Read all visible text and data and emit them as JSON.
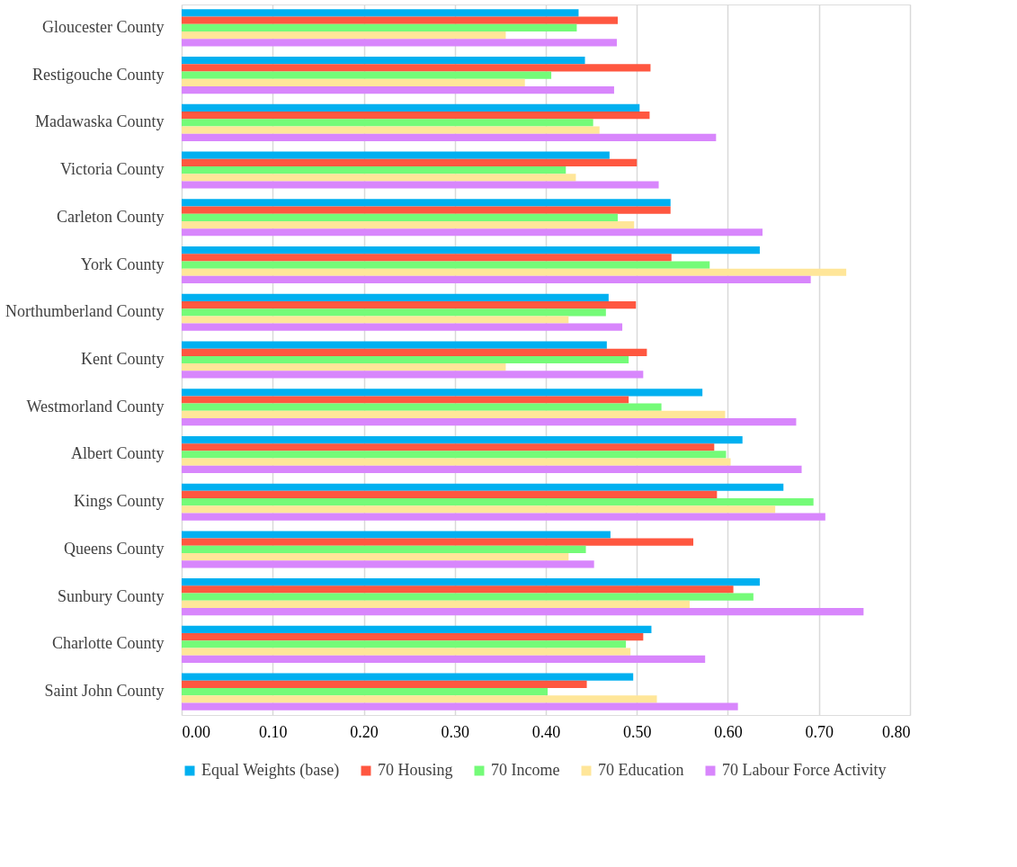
{
  "chart_data": {
    "type": "bar",
    "orientation": "horizontal",
    "categories": [
      "Gloucester County",
      "Restigouche County",
      "Madawaska County",
      "Victoria County",
      "Carleton County",
      "York County",
      "Northumberland County",
      "Kent County",
      "Westmorland County",
      "Albert County",
      "Kings County",
      "Queens County",
      "Sunbury County",
      "Charlotte County",
      "Saint John County"
    ],
    "series": [
      {
        "name": "Equal Weights (base)",
        "color": "#00b0f0",
        "values": [
          0.436,
          0.443,
          0.503,
          0.47,
          0.537,
          0.635,
          0.469,
          0.467,
          0.572,
          0.616,
          0.661,
          0.471,
          0.635,
          0.516,
          0.496
        ]
      },
      {
        "name": "70 Housing",
        "color": "#ff5740",
        "values": [
          0.479,
          0.515,
          0.514,
          0.5,
          0.537,
          0.538,
          0.499,
          0.511,
          0.491,
          0.585,
          0.588,
          0.562,
          0.606,
          0.507,
          0.445
        ]
      },
      {
        "name": "70 Income",
        "color": "#74fb78",
        "values": [
          0.434,
          0.406,
          0.452,
          0.422,
          0.479,
          0.58,
          0.466,
          0.491,
          0.527,
          0.598,
          0.694,
          0.444,
          0.628,
          0.488,
          0.402
        ]
      },
      {
        "name": "70 Education",
        "color": "#ffe699",
        "values": [
          0.356,
          0.377,
          0.459,
          0.433,
          0.497,
          0.73,
          0.425,
          0.356,
          0.597,
          0.603,
          0.652,
          0.425,
          0.558,
          0.493,
          0.522
        ]
      },
      {
        "name": "70 Labour Force Activity",
        "color": "#d886fc",
        "values": [
          0.478,
          0.475,
          0.587,
          0.524,
          0.638,
          0.691,
          0.484,
          0.507,
          0.675,
          0.681,
          0.707,
          0.453,
          0.749,
          0.575,
          0.611
        ]
      }
    ],
    "xlim": [
      0,
      0.8
    ],
    "xticks": [
      {
        "value": 0,
        "label": "0.00"
      },
      {
        "value": 0.1,
        "label": "0.10"
      },
      {
        "value": 0.2,
        "label": "0.20"
      },
      {
        "value": 0.3,
        "label": "0.30"
      },
      {
        "value": 0.4,
        "label": "0.40"
      },
      {
        "value": 0.5,
        "label": "0.50"
      },
      {
        "value": 0.6,
        "label": "0.60"
      },
      {
        "value": 0.7,
        "label": "0.70"
      },
      {
        "value": 0.8,
        "label": "0.80"
      }
    ],
    "grid": "x",
    "legend": "bottom"
  }
}
